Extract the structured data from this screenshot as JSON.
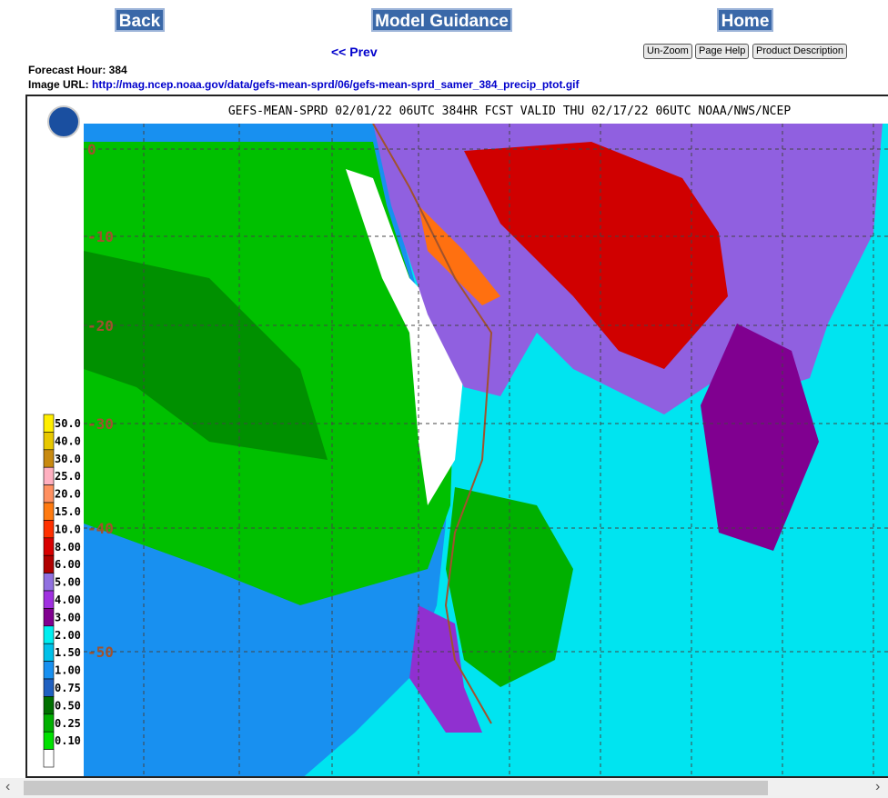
{
  "nav": {
    "back": "Back",
    "model_guidance": "Model Guidance",
    "home": "Home",
    "prev": "<< Prev",
    "unzoom": "Un-Zoom",
    "page_help": "Page Help",
    "product_description": "Product Description"
  },
  "info": {
    "forecast_hour": "Forecast Hour: 384",
    "image_url_label": "Image URL:",
    "image_url": "http://mag.ncep.noaa.gov/data/gefs-mean-sprd/06/gefs-mean-sprd_samer_384_precip_ptot.gif"
  },
  "map": {
    "title": "GEFS-MEAN-SPRD 02/01/22 06UTC 384HR FCST VALID THU 02/17/22 06UTC NOAA/NWS/NCEP",
    "lat_labels": [
      "0",
      "-10",
      "-20",
      "-30",
      "-40",
      "-50"
    ],
    "legend": [
      {
        "label": "50.0",
        "color": "#ffee00"
      },
      {
        "label": "40.0",
        "color": "#e8c800"
      },
      {
        "label": "30.0",
        "color": "#c88a10"
      },
      {
        "label": "25.0",
        "color": "#ffb0c0"
      },
      {
        "label": "20.0",
        "color": "#ff9060"
      },
      {
        "label": "15.0",
        "color": "#ff7a10"
      },
      {
        "label": "10.0",
        "color": "#ff3000"
      },
      {
        "label": "8.00",
        "color": "#d80000"
      },
      {
        "label": "6.00",
        "color": "#b00000"
      },
      {
        "label": "5.00",
        "color": "#9070e0"
      },
      {
        "label": "4.00",
        "color": "#a030e0"
      },
      {
        "label": "3.00",
        "color": "#800090"
      },
      {
        "label": "2.00",
        "color": "#00eef0"
      },
      {
        "label": "1.50",
        "color": "#00c0e8"
      },
      {
        "label": "1.00",
        "color": "#1890f0"
      },
      {
        "label": "0.75",
        "color": "#2060c0"
      },
      {
        "label": "0.50",
        "color": "#007000"
      },
      {
        "label": "0.25",
        "color": "#00b000"
      },
      {
        "label": "0.10",
        "color": "#00e000"
      },
      {
        "label": "",
        "color": "#ffffff"
      }
    ]
  }
}
